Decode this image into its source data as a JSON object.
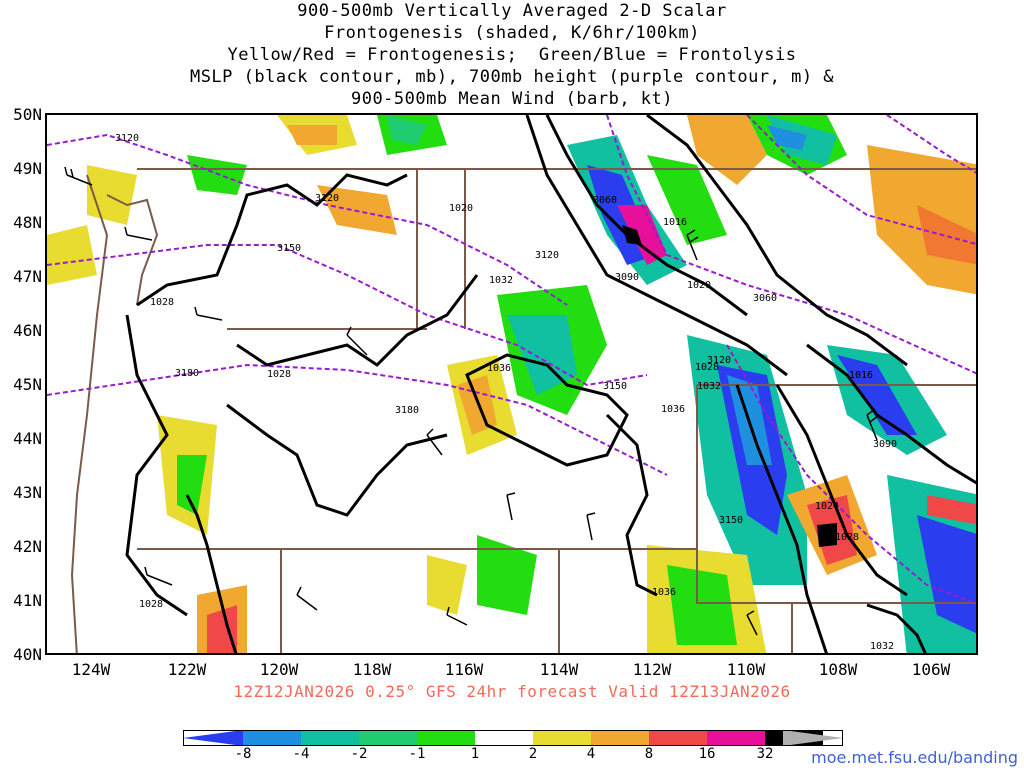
{
  "title": {
    "line1": "900-500mb Vertically Averaged 2-D Scalar",
    "line2": "Frontogenesis (shaded, K/6hr/100km)",
    "line3": "Yellow/Red = Frontogenesis;  Green/Blue = Frontolysis",
    "line4": "MSLP (black contour, mb), 700mb height (purple contour, m) &",
    "line5": "900-500mb Mean Wind (barb, kt)"
  },
  "lat_labels": [
    "50N",
    "49N",
    "48N",
    "47N",
    "46N",
    "45N",
    "44N",
    "43N",
    "42N",
    "41N",
    "40N"
  ],
  "lon_labels": [
    "124W",
    "122W",
    "120W",
    "118W",
    "116W",
    "114W",
    "112W",
    "110W",
    "108W",
    "106W"
  ],
  "valid_line": "12Z12JAN2026 0.25° GFS 24hr forecast Valid 12Z13JAN2026",
  "colorbar": {
    "labels": [
      "-8",
      "-4",
      "-2",
      "-1",
      "1",
      "2",
      "4",
      "8",
      "16",
      "32"
    ],
    "colors": [
      "#2a3ef0",
      "#1f8fe0",
      "#10c0a0",
      "#20cc70",
      "#22dd10",
      "#ffffff",
      "#e8dc30",
      "#f0a830",
      "#f07830",
      "#f04848",
      "#e8109a",
      "#000000",
      "#b0b0b0"
    ]
  },
  "pressure_labels": [
    "1028",
    "1028",
    "1028",
    "1032",
    "1036",
    "1020",
    "1016",
    "1020",
    "1028",
    "1032",
    "1036",
    "1036",
    "1024",
    "1028",
    "1016",
    "1032"
  ],
  "height_labels": [
    "3120",
    "3120",
    "3150",
    "3180",
    "3180",
    "3060",
    "3090",
    "3120",
    "3060",
    "3150",
    "3120",
    "3150",
    "3090"
  ],
  "credit": "moe.met.fsu.edu/banding"
}
